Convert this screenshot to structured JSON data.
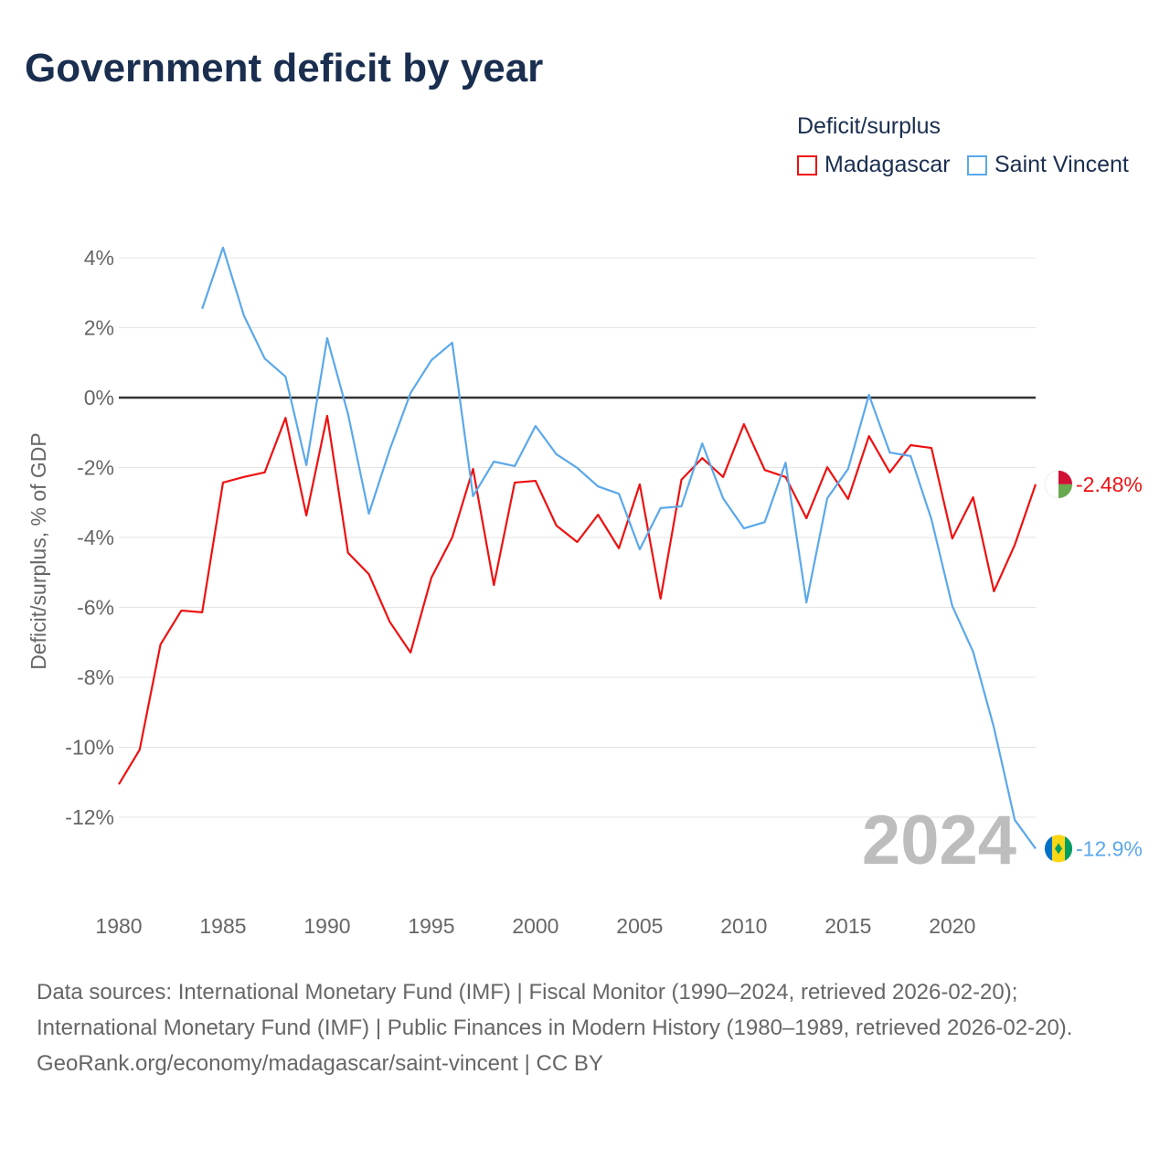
{
  "title": "Government deficit by year",
  "legend": {
    "title": "Deficit/surplus",
    "items": [
      "Madagascar",
      "Saint Vincent"
    ]
  },
  "footer": {
    "sources": "Data sources: International Monetary Fund (IMF) | Fiscal Monitor (1990–2024, retrieved 2026-02-20); International Monetary Fund (IMF) | Public Finances in Modern History (1980–1989, retrieved 2026-02-20).",
    "credit": "GeoRank.org/economy/madagascar/saint-vincent | CC BY"
  },
  "chart_data": {
    "type": "line",
    "title": "Government deficit by year",
    "xlabel": "",
    "ylabel": "Deficit/surplus, % of GDP",
    "xlim": [
      1980,
      2024
    ],
    "ylim": [
      -13.5,
      4.5
    ],
    "xticks": [
      1980,
      1985,
      1990,
      1995,
      2000,
      2005,
      2010,
      2015,
      2020
    ],
    "yticks": [
      4,
      2,
      0,
      -2,
      -4,
      -6,
      -8,
      -10,
      -12
    ],
    "ytick_labels": [
      "4%",
      "2%",
      "0%",
      "-2%",
      "-4%",
      "-6%",
      "-8%",
      "-10%",
      "-12%"
    ],
    "grid": true,
    "legend_position": "top-right",
    "year_watermark": "2024",
    "series": [
      {
        "name": "Madagascar",
        "color": "#ee1111",
        "end_label": "-2.48%",
        "start_year": 1980,
        "values": [
          -11.06,
          -10.07,
          -7.06,
          -6.09,
          -6.14,
          -2.43,
          -2.27,
          -2.14,
          -0.58,
          -3.37,
          -0.52,
          -4.44,
          -5.05,
          -6.41,
          -7.29,
          -5.15,
          -4.0,
          -2.04,
          -5.36,
          -2.43,
          -2.38,
          -3.66,
          -4.13,
          -3.35,
          -4.31,
          -2.48,
          -5.75,
          -2.35,
          -1.73,
          -2.27,
          -0.76,
          -2.07,
          -2.27,
          -3.45,
          -1.99,
          -2.9,
          -1.1,
          -2.14,
          -1.36,
          -1.44,
          -4.03,
          -2.85,
          -5.54,
          -4.21,
          -2.48
        ]
      },
      {
        "name": "Saint Vincent",
        "color": "#5ba8ea",
        "end_label": "-12.9%",
        "start_year": 1984,
        "values": [
          2.54,
          4.29,
          2.35,
          1.12,
          0.6,
          -1.93,
          1.7,
          -0.47,
          -3.32,
          -1.49,
          0.13,
          1.07,
          1.57,
          -2.82,
          -1.83,
          -1.96,
          -0.81,
          -1.62,
          -2.01,
          -2.54,
          -2.75,
          -4.34,
          -3.16,
          -3.11,
          -1.31,
          -2.88,
          -3.74,
          -3.56,
          -1.86,
          -5.86,
          -2.88,
          -2.04,
          0.08,
          -1.57,
          -1.67,
          -3.48,
          -5.96,
          -7.27,
          -9.44,
          -12.08,
          -12.9
        ]
      }
    ]
  }
}
